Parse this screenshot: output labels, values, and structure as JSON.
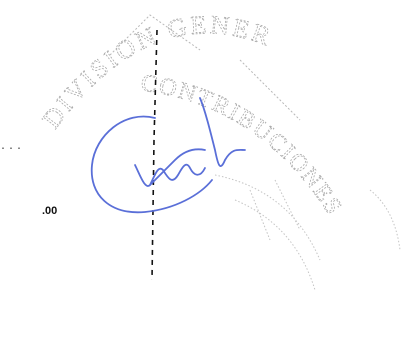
{
  "document": {
    "leader_text": "...",
    "amount_text": ".00"
  },
  "stamp": {
    "upper_text": "DIVISION GENERAL",
    "lower_text": "CONTRIBUCIONES",
    "ink_color": "#9a9a9a"
  },
  "signature": {
    "ink_color": "#5a6fd8"
  }
}
